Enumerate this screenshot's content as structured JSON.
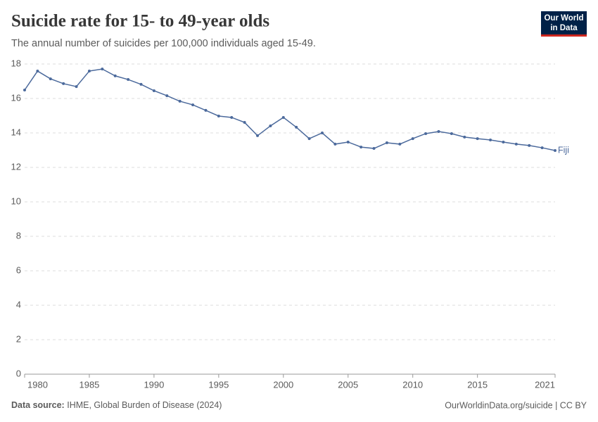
{
  "chart_data": {
    "type": "line",
    "title": "Suicide rate for 15- to 49-year olds",
    "subtitle": "The annual number of suicides per 100,000 individuals aged 15-49.",
    "logo": [
      "Our World",
      "in Data"
    ],
    "source_label": "Data source:",
    "source_text": "IHME, Global Burden of Disease (2024)",
    "footer_right": "OurWorldinData.org/suicide | CC BY",
    "x": [
      1980,
      1981,
      1982,
      1983,
      1984,
      1985,
      1986,
      1987,
      1988,
      1989,
      1990,
      1991,
      1992,
      1993,
      1994,
      1995,
      1996,
      1997,
      1998,
      1999,
      2000,
      2001,
      2002,
      2003,
      2004,
      2005,
      2006,
      2007,
      2008,
      2009,
      2010,
      2011,
      2012,
      2013,
      2014,
      2015,
      2016,
      2017,
      2018,
      2019,
      2020,
      2021
    ],
    "series": [
      {
        "name": "Fiji",
        "color": "#4c6a9c",
        "values": [
          16.49,
          17.59,
          17.14,
          16.86,
          16.69,
          17.59,
          17.71,
          17.31,
          17.1,
          16.82,
          16.45,
          16.16,
          15.84,
          15.63,
          15.31,
          14.98,
          14.9,
          14.61,
          13.84,
          14.41,
          14.9,
          14.33,
          13.67,
          14.0,
          13.35,
          13.47,
          13.18,
          13.1,
          13.43,
          13.35,
          13.67,
          13.96,
          14.08,
          13.96,
          13.76,
          13.67,
          13.59,
          13.47,
          13.35,
          13.27,
          13.14,
          12.98
        ]
      }
    ],
    "xlim": [
      1980,
      2021
    ],
    "xticks": [
      1980,
      1985,
      1990,
      1995,
      2000,
      2005,
      2010,
      2015,
      2021
    ],
    "ylim": [
      0,
      18
    ],
    "yticks": [
      0,
      2,
      4,
      6,
      8,
      10,
      12,
      14,
      16,
      18
    ],
    "grid": true
  }
}
